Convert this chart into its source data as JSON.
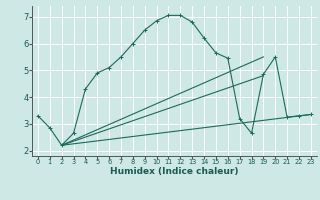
{
  "xlabel": "Humidex (Indice chaleur)",
  "bg_color": "#cde8e5",
  "line_color": "#1a6b5a",
  "grid_color": "#ffffff",
  "curve1_x": [
    0,
    1,
    2,
    3,
    4,
    5,
    6,
    7,
    8,
    9,
    10,
    11,
    12,
    13,
    14,
    15,
    16,
    17,
    18,
    19,
    20,
    21,
    22,
    23
  ],
  "curve1_y": [
    3.3,
    2.85,
    2.2,
    2.65,
    4.3,
    4.9,
    5.1,
    5.5,
    6.0,
    6.5,
    6.85,
    7.05,
    7.05,
    6.8,
    6.2,
    5.65,
    5.45,
    3.2,
    2.65,
    4.85,
    5.5,
    3.25,
    3.3,
    3.35
  ],
  "curve2_x": [
    2,
    23
  ],
  "curve2_y": [
    2.2,
    3.35
  ],
  "curve3_x": [
    2,
    19
  ],
  "curve3_y": [
    2.2,
    5.5
  ],
  "curve4_x": [
    2,
    19
  ],
  "curve4_y": [
    2.2,
    4.8
  ],
  "xlim": [
    -0.5,
    23.5
  ],
  "ylim": [
    1.8,
    7.4
  ],
  "xticks": [
    0,
    1,
    2,
    3,
    4,
    5,
    6,
    7,
    8,
    9,
    10,
    11,
    12,
    13,
    14,
    15,
    16,
    17,
    18,
    19,
    20,
    21,
    22,
    23
  ],
  "yticks": [
    2,
    3,
    4,
    5,
    6,
    7
  ]
}
